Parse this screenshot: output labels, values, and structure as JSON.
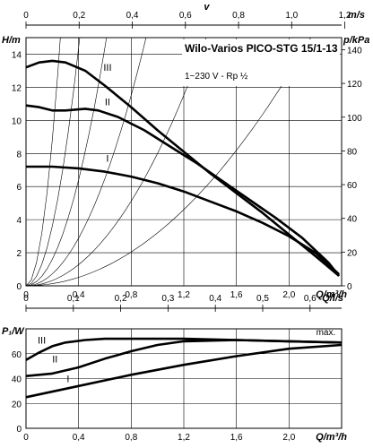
{
  "chart_data": [
    {
      "type": "line",
      "title": "Wilo-Varios PICO-STG 15/1-13",
      "subtitle": "1~230 V - Rp ½",
      "xlabel": "Q/m³/h",
      "ylabel": "H/m",
      "ylabel_right": "p/kPa",
      "xlim": [
        0,
        2.4
      ],
      "ylim": [
        0,
        15
      ],
      "x_ticks": [
        "0",
        "0,4",
        "0,8",
        "1,2",
        "1,6",
        "2,0"
      ],
      "y_ticks": [
        "0",
        "2",
        "4",
        "6",
        "8",
        "10",
        "12",
        "14"
      ],
      "right_ticks": [
        "0",
        "20",
        "40",
        "60",
        "80",
        "100",
        "120",
        "140"
      ],
      "top_axis": {
        "label": "v",
        "unit": "m/s",
        "pipe": "Rp ½",
        "ticks": [
          "0",
          "0,2",
          "0,4",
          "0,6",
          "0,8",
          "1,0",
          "1,2"
        ],
        "m_per_s_per_m3h": 0.495
      },
      "series": [
        {
          "name": "III",
          "x": [
            0,
            0.1,
            0.2,
            0.3,
            0.45,
            0.6,
            0.8,
            1.0,
            1.2,
            1.4,
            1.6,
            1.8,
            2.0,
            2.2,
            2.38
          ],
          "y": [
            13.2,
            13.5,
            13.6,
            13.5,
            13.0,
            12.1,
            10.8,
            9.4,
            8.1,
            6.8,
            5.6,
            4.4,
            3.1,
            1.8,
            0.6
          ]
        },
        {
          "name": "II",
          "x": [
            0,
            0.1,
            0.2,
            0.3,
            0.45,
            0.55,
            0.7,
            0.9,
            1.1,
            1.3,
            1.5,
            1.7,
            1.9,
            2.1,
            2.3,
            2.38
          ],
          "y": [
            10.9,
            10.8,
            10.6,
            10.6,
            10.7,
            10.6,
            10.2,
            9.4,
            8.4,
            7.4,
            6.3,
            5.2,
            4.1,
            2.9,
            1.4,
            0.6
          ]
        },
        {
          "name": "I",
          "x": [
            0,
            0.2,
            0.4,
            0.6,
            0.8,
            1.0,
            1.2,
            1.4,
            1.6,
            1.8,
            2.0,
            2.2,
            2.38
          ],
          "y": [
            7.2,
            7.2,
            7.1,
            6.9,
            6.6,
            6.2,
            5.7,
            5.1,
            4.5,
            3.8,
            3.0,
            2.0,
            0.7
          ]
        }
      ]
    },
    {
      "type": "line",
      "xlabel": "Q/m³/h",
      "ylabel": "P₁/W",
      "xlim": [
        0,
        2.4
      ],
      "ylim": [
        0,
        80
      ],
      "x_ticks": [
        "0",
        "0,4",
        "0,8",
        "1,2",
        "1,6",
        "2,0"
      ],
      "y_ticks": [
        "0",
        "20",
        "40",
        "60"
      ],
      "top_axis": {
        "label": "Q/l/s",
        "ticks": [
          "0",
          "0,1",
          "0,2",
          "0,3",
          "0,4",
          "0,5",
          "0,6"
        ],
        "l_per_s_per_m3h": 0.2778
      },
      "annotation": "max.",
      "series": [
        {
          "name": "III",
          "x": [
            0,
            0.1,
            0.2,
            0.3,
            0.45,
            0.6,
            0.8,
            1.2,
            1.6,
            2.0,
            2.4
          ],
          "y": [
            55,
            61,
            66,
            69,
            71,
            72,
            72,
            72,
            71,
            70,
            69
          ]
        },
        {
          "name": "II",
          "x": [
            0,
            0.2,
            0.4,
            0.6,
            0.8,
            1.0,
            1.2,
            1.6,
            2.0,
            2.4
          ],
          "y": [
            42,
            44,
            49,
            56,
            62,
            67,
            70,
            71,
            70,
            69
          ]
        },
        {
          "name": "I",
          "x": [
            0,
            0.4,
            0.8,
            1.2,
            1.6,
            2.0,
            2.4
          ],
          "y": [
            25,
            34,
            43,
            51,
            58,
            64,
            67
          ]
        }
      ]
    }
  ]
}
